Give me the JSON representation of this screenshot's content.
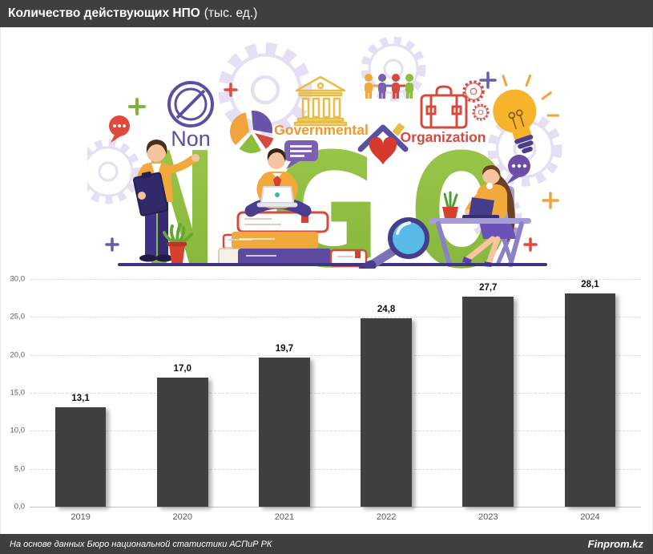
{
  "header": {
    "title_bold": "Количество действующих НПО",
    "title_suffix": "(тыс. ед.)"
  },
  "illustration": {
    "letters": [
      "N",
      "G",
      "O"
    ],
    "word_non": "Non",
    "word_governmental": "Governmental",
    "word_organization": "Organization"
  },
  "chart_data": {
    "type": "bar",
    "title": "Количество действующих НПО (тыс. ед.)",
    "categories": [
      "2019",
      "2020",
      "2021",
      "2022",
      "2023",
      "2024"
    ],
    "values": [
      13.1,
      17.0,
      19.7,
      24.8,
      27.7,
      28.1
    ],
    "value_labels": [
      "13,1",
      "17,0",
      "19,7",
      "24,8",
      "27,7",
      "28,1"
    ],
    "xlabel": "",
    "ylabel": "",
    "ylim": [
      0,
      30
    ],
    "y_ticks": [
      "30,0",
      "25,0",
      "20,0",
      "15,0",
      "10,0",
      "5,0",
      "0,0"
    ],
    "grid": true,
    "legend": "none",
    "bar_color": "#404040"
  },
  "footer": {
    "source": "На основе данных Бюро национальной статистики АСПиР РК",
    "brand": "Finprom.kz"
  },
  "colors": {
    "header_bg": "#3F3F3F",
    "bar": "#404040",
    "gridline": "#D9D9D9",
    "axis_text": "#595959",
    "ngo_green": "#8CBE3B",
    "purple": "#5B4FA0",
    "orange": "#F0982B",
    "red": "#D6493E",
    "yellow": "#F7B32B",
    "blue": "#58BBE8"
  }
}
